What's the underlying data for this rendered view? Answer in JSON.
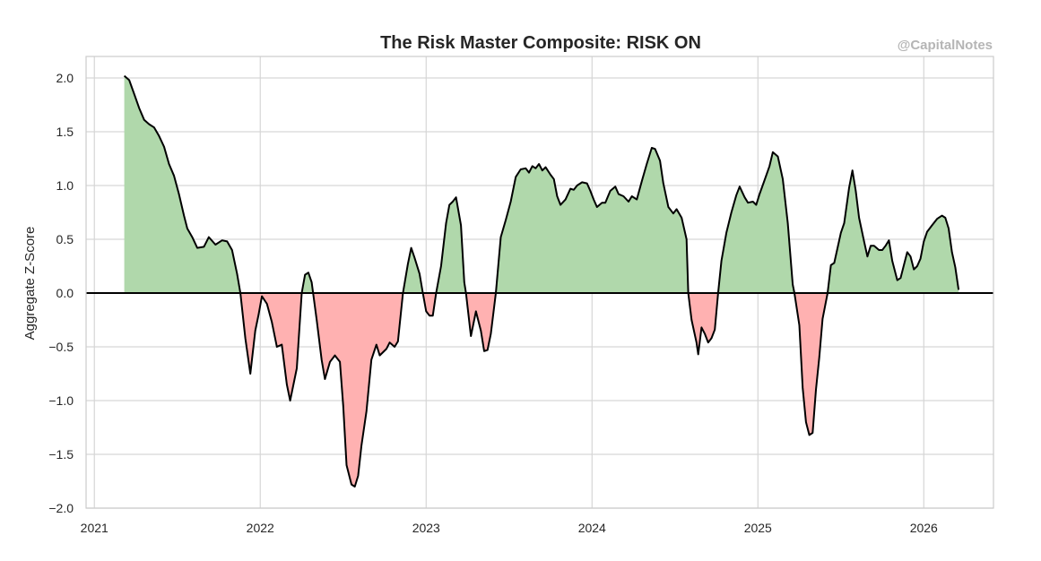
{
  "chart_data": {
    "type": "area",
    "title": "The Risk Master Composite: RISK ON",
    "watermark": "@CapitalNotes",
    "xlabel": "",
    "ylabel": "Aggregate Z-Score",
    "xlim": [
      2020.95,
      2026.42
    ],
    "ylim": [
      -2.0,
      2.2
    ],
    "grid": true,
    "x_ticks": [
      2021,
      2022,
      2023,
      2024,
      2025,
      2026
    ],
    "x_tick_labels": [
      "2021",
      "2022",
      "2023",
      "2024",
      "2025",
      "2026"
    ],
    "y_ticks": [
      -2.0,
      -1.5,
      -1.0,
      -0.5,
      0.0,
      0.5,
      1.0,
      1.5,
      2.0
    ],
    "y_tick_labels": [
      "−2.0",
      "−1.5",
      "−1.0",
      "−0.5",
      "0.0",
      "0.5",
      "1.0",
      "1.5",
      "2.0"
    ],
    "positive_fill": "#b0d8ab",
    "negative_fill": "#ffb1b1",
    "line_color": "#000000",
    "zero_line_color": "#000000",
    "series": [
      {
        "name": "Aggregate Z-Score",
        "points": [
          [
            2021.18,
            2.02
          ],
          [
            2021.21,
            1.98
          ],
          [
            2021.24,
            1.85
          ],
          [
            2021.27,
            1.72
          ],
          [
            2021.3,
            1.61
          ],
          [
            2021.33,
            1.57
          ],
          [
            2021.36,
            1.54
          ],
          [
            2021.39,
            1.46
          ],
          [
            2021.42,
            1.36
          ],
          [
            2021.45,
            1.2
          ],
          [
            2021.48,
            1.09
          ],
          [
            2021.51,
            0.92
          ],
          [
            2021.54,
            0.72
          ],
          [
            2021.56,
            0.6
          ],
          [
            2021.59,
            0.52
          ],
          [
            2021.62,
            0.42
          ],
          [
            2021.66,
            0.43
          ],
          [
            2021.69,
            0.52
          ],
          [
            2021.73,
            0.45
          ],
          [
            2021.77,
            0.49
          ],
          [
            2021.8,
            0.48
          ],
          [
            2021.83,
            0.4
          ],
          [
            2021.86,
            0.18
          ],
          [
            2021.88,
            0.0
          ],
          [
            2021.91,
            -0.42
          ],
          [
            2021.94,
            -0.75
          ],
          [
            2021.97,
            -0.35
          ],
          [
            2021.99,
            -0.2
          ],
          [
            2022.01,
            -0.03
          ],
          [
            2022.04,
            -0.1
          ],
          [
            2022.07,
            -0.27
          ],
          [
            2022.1,
            -0.5
          ],
          [
            2022.13,
            -0.48
          ],
          [
            2022.16,
            -0.85
          ],
          [
            2022.18,
            -1.0
          ],
          [
            2022.22,
            -0.7
          ],
          [
            2022.25,
            0.0
          ],
          [
            2022.27,
            0.17
          ],
          [
            2022.29,
            0.19
          ],
          [
            2022.31,
            0.1
          ],
          [
            2022.34,
            -0.25
          ],
          [
            2022.37,
            -0.62
          ],
          [
            2022.39,
            -0.8
          ],
          [
            2022.42,
            -0.64
          ],
          [
            2022.45,
            -0.58
          ],
          [
            2022.48,
            -0.64
          ],
          [
            2022.5,
            -1.05
          ],
          [
            2022.52,
            -1.6
          ],
          [
            2022.55,
            -1.78
          ],
          [
            2022.57,
            -1.8
          ],
          [
            2022.59,
            -1.7
          ],
          [
            2022.61,
            -1.42
          ],
          [
            2022.64,
            -1.1
          ],
          [
            2022.67,
            -0.62
          ],
          [
            2022.7,
            -0.48
          ],
          [
            2022.72,
            -0.58
          ],
          [
            2022.76,
            -0.52
          ],
          [
            2022.78,
            -0.46
          ],
          [
            2022.81,
            -0.5
          ],
          [
            2022.83,
            -0.45
          ],
          [
            2022.86,
            0.0
          ],
          [
            2022.89,
            0.27
          ],
          [
            2022.91,
            0.42
          ],
          [
            2022.93,
            0.33
          ],
          [
            2022.96,
            0.18
          ],
          [
            2022.98,
            0.0
          ],
          [
            2023.0,
            -0.17
          ],
          [
            2023.02,
            -0.21
          ],
          [
            2023.04,
            -0.21
          ],
          [
            2023.06,
            0.0
          ],
          [
            2023.09,
            0.25
          ],
          [
            2023.12,
            0.65
          ],
          [
            2023.14,
            0.82
          ],
          [
            2023.16,
            0.85
          ],
          [
            2023.18,
            0.89
          ],
          [
            2023.21,
            0.63
          ],
          [
            2023.23,
            0.1
          ],
          [
            2023.24,
            0.0
          ],
          [
            2023.27,
            -0.4
          ],
          [
            2023.3,
            -0.17
          ],
          [
            2023.33,
            -0.35
          ],
          [
            2023.35,
            -0.54
          ],
          [
            2023.37,
            -0.53
          ],
          [
            2023.39,
            -0.38
          ],
          [
            2023.42,
            0.0
          ],
          [
            2023.45,
            0.52
          ],
          [
            2023.48,
            0.68
          ],
          [
            2023.51,
            0.85
          ],
          [
            2023.54,
            1.08
          ],
          [
            2023.57,
            1.15
          ],
          [
            2023.6,
            1.16
          ],
          [
            2023.62,
            1.12
          ],
          [
            2023.64,
            1.18
          ],
          [
            2023.66,
            1.16
          ],
          [
            2023.68,
            1.2
          ],
          [
            2023.7,
            1.14
          ],
          [
            2023.72,
            1.17
          ],
          [
            2023.75,
            1.1
          ],
          [
            2023.77,
            1.06
          ],
          [
            2023.79,
            0.9
          ],
          [
            2023.81,
            0.82
          ],
          [
            2023.84,
            0.87
          ],
          [
            2023.87,
            0.97
          ],
          [
            2023.89,
            0.96
          ],
          [
            2023.91,
            1.0
          ],
          [
            2023.94,
            1.03
          ],
          [
            2023.97,
            1.02
          ],
          [
            2023.99,
            0.95
          ],
          [
            2024.01,
            0.87
          ],
          [
            2024.03,
            0.8
          ],
          [
            2024.06,
            0.84
          ],
          [
            2024.08,
            0.84
          ],
          [
            2024.11,
            0.95
          ],
          [
            2024.14,
            0.99
          ],
          [
            2024.16,
            0.92
          ],
          [
            2024.19,
            0.9
          ],
          [
            2024.22,
            0.85
          ],
          [
            2024.24,
            0.9
          ],
          [
            2024.27,
            0.87
          ],
          [
            2024.3,
            1.04
          ],
          [
            2024.33,
            1.2
          ],
          [
            2024.36,
            1.35
          ],
          [
            2024.38,
            1.34
          ],
          [
            2024.41,
            1.23
          ],
          [
            2024.43,
            1.02
          ],
          [
            2024.46,
            0.8
          ],
          [
            2024.49,
            0.74
          ],
          [
            2024.51,
            0.78
          ],
          [
            2024.54,
            0.7
          ],
          [
            2024.57,
            0.5
          ],
          [
            2024.58,
            0.0
          ],
          [
            2024.6,
            -0.25
          ],
          [
            2024.63,
            -0.46
          ],
          [
            2024.64,
            -0.57
          ],
          [
            2024.66,
            -0.32
          ],
          [
            2024.68,
            -0.38
          ],
          [
            2024.7,
            -0.46
          ],
          [
            2024.72,
            -0.42
          ],
          [
            2024.74,
            -0.34
          ],
          [
            2024.76,
            0.0
          ],
          [
            2024.78,
            0.3
          ],
          [
            2024.81,
            0.56
          ],
          [
            2024.84,
            0.75
          ],
          [
            2024.87,
            0.91
          ],
          [
            2024.89,
            0.99
          ],
          [
            2024.92,
            0.89
          ],
          [
            2024.94,
            0.84
          ],
          [
            2024.97,
            0.85
          ],
          [
            2024.99,
            0.82
          ],
          [
            2025.01,
            0.92
          ],
          [
            2025.04,
            1.05
          ],
          [
            2025.07,
            1.18
          ],
          [
            2025.09,
            1.31
          ],
          [
            2025.12,
            1.27
          ],
          [
            2025.15,
            1.06
          ],
          [
            2025.18,
            0.65
          ],
          [
            2025.21,
            0.08
          ],
          [
            2025.22,
            0.0
          ],
          [
            2025.25,
            -0.3
          ],
          [
            2025.27,
            -0.88
          ],
          [
            2025.29,
            -1.2
          ],
          [
            2025.31,
            -1.32
          ],
          [
            2025.33,
            -1.3
          ],
          [
            2025.35,
            -0.9
          ],
          [
            2025.37,
            -0.6
          ],
          [
            2025.39,
            -0.24
          ],
          [
            2025.42,
            0.0
          ],
          [
            2025.44,
            0.26
          ],
          [
            2025.46,
            0.28
          ],
          [
            2025.48,
            0.42
          ],
          [
            2025.5,
            0.56
          ],
          [
            2025.52,
            0.65
          ],
          [
            2025.55,
            0.98
          ],
          [
            2025.57,
            1.14
          ],
          [
            2025.59,
            0.95
          ],
          [
            2025.61,
            0.7
          ],
          [
            2025.64,
            0.48
          ],
          [
            2025.66,
            0.34
          ],
          [
            2025.68,
            0.44
          ],
          [
            2025.7,
            0.44
          ],
          [
            2025.73,
            0.4
          ],
          [
            2025.75,
            0.4
          ],
          [
            2025.77,
            0.44
          ],
          [
            2025.79,
            0.49
          ],
          [
            2025.81,
            0.3
          ],
          [
            2025.84,
            0.12
          ],
          [
            2025.86,
            0.14
          ],
          [
            2025.88,
            0.26
          ],
          [
            2025.9,
            0.38
          ],
          [
            2025.92,
            0.34
          ],
          [
            2025.94,
            0.22
          ],
          [
            2025.96,
            0.25
          ],
          [
            2025.98,
            0.32
          ],
          [
            2026.0,
            0.48
          ],
          [
            2026.02,
            0.57
          ],
          [
            2026.05,
            0.63
          ],
          [
            2026.08,
            0.69
          ],
          [
            2026.11,
            0.72
          ],
          [
            2026.13,
            0.7
          ],
          [
            2026.15,
            0.6
          ],
          [
            2026.17,
            0.38
          ],
          [
            2026.19,
            0.24
          ],
          [
            2026.21,
            0.03
          ]
        ]
      }
    ]
  }
}
